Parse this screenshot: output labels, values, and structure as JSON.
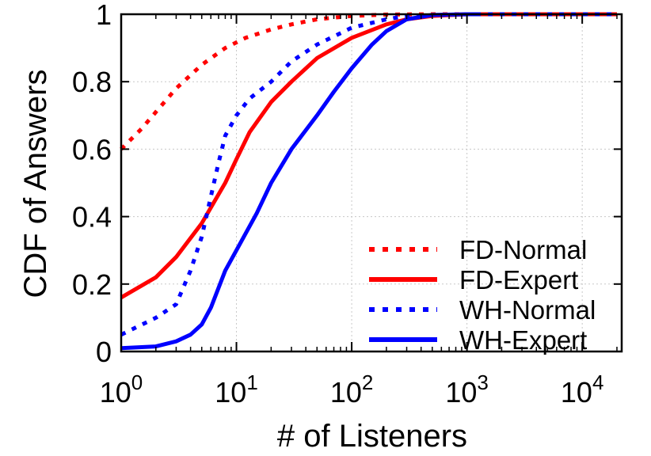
{
  "chart_data": {
    "type": "line",
    "title": "",
    "xlabel": "# of Listeners",
    "ylabel": "CDF of Answers",
    "xscale": "log",
    "xlim": [
      1,
      22000
    ],
    "ylim": [
      0,
      1
    ],
    "grid": true,
    "legend_position": "bottom-right",
    "x_ticks": [
      {
        "value": 1,
        "base": "10",
        "exp": "0"
      },
      {
        "value": 10,
        "base": "10",
        "exp": "1"
      },
      {
        "value": 100,
        "base": "10",
        "exp": "2"
      },
      {
        "value": 1000,
        "base": "10",
        "exp": "3"
      },
      {
        "value": 10000,
        "base": "10",
        "exp": "4"
      }
    ],
    "y_ticks": [
      {
        "value": 0,
        "label": "0"
      },
      {
        "value": 0.2,
        "label": "0.2"
      },
      {
        "value": 0.4,
        "label": "0.4"
      },
      {
        "value": 0.6,
        "label": "0.6"
      },
      {
        "value": 0.8,
        "label": "0.8"
      },
      {
        "value": 1,
        "label": "1"
      }
    ],
    "series": [
      {
        "name": "FD-Normal",
        "color": "#ff0000",
        "style": "dotted",
        "x": [
          1,
          1.5,
          2,
          3,
          5,
          8,
          12,
          20,
          30,
          50,
          100,
          200,
          500,
          1000,
          20000
        ],
        "y": [
          0.6,
          0.66,
          0.71,
          0.78,
          0.85,
          0.9,
          0.93,
          0.955,
          0.97,
          0.985,
          0.995,
          0.999,
          1,
          1,
          1
        ]
      },
      {
        "name": "FD-Expert",
        "color": "#ff0000",
        "style": "solid",
        "x": [
          1,
          2,
          3,
          5,
          8,
          10,
          13,
          20,
          30,
          50,
          100,
          200,
          300,
          500,
          1000,
          20000
        ],
        "y": [
          0.16,
          0.22,
          0.28,
          0.38,
          0.5,
          0.57,
          0.65,
          0.74,
          0.8,
          0.87,
          0.93,
          0.97,
          0.985,
          0.995,
          1,
          1
        ]
      },
      {
        "name": "WH-Normal",
        "color": "#0000ff",
        "style": "dotted",
        "x": [
          1,
          2,
          3,
          4,
          5,
          6,
          7,
          8,
          10,
          13,
          20,
          30,
          50,
          100,
          200,
          300,
          1000,
          20000
        ],
        "y": [
          0.05,
          0.1,
          0.14,
          0.24,
          0.34,
          0.46,
          0.56,
          0.64,
          0.7,
          0.75,
          0.8,
          0.86,
          0.91,
          0.96,
          0.985,
          0.995,
          1,
          1
        ]
      },
      {
        "name": "WH-Expert",
        "color": "#0000ff",
        "style": "solid",
        "x": [
          1,
          2,
          3,
          4,
          5,
          6,
          8,
          10,
          15,
          20,
          30,
          50,
          70,
          100,
          150,
          200,
          300,
          500,
          1000,
          1300
        ],
        "y": [
          0.01,
          0.015,
          0.03,
          0.05,
          0.08,
          0.13,
          0.24,
          0.3,
          0.41,
          0.5,
          0.6,
          0.7,
          0.77,
          0.84,
          0.91,
          0.95,
          0.985,
          0.998,
          1,
          1
        ]
      }
    ]
  }
}
